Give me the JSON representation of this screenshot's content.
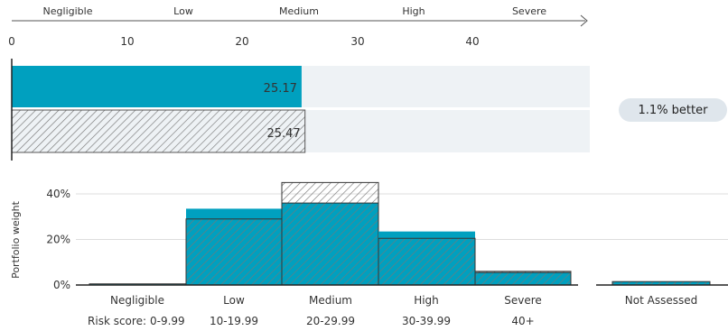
{
  "risk_categories": [
    "Negligible",
    "Low",
    "Medium",
    "High",
    "Severe"
  ],
  "score_axis": {
    "ticks": [
      "0",
      "10",
      "20",
      "30",
      "40"
    ],
    "range": [
      0,
      50
    ]
  },
  "comparison_badge": "1.1% better",
  "bottom_labels": {
    "category_names": [
      "Negligible",
      "Low",
      "Medium",
      "High",
      "Severe",
      "Not Assessed"
    ],
    "score_prefix": "Risk score:",
    "score_ranges": [
      "0-9.99",
      "10-19.99",
      "20-29.99",
      "30-39.99",
      "40+"
    ]
  },
  "colors": {
    "portfolio": "#00a0bf",
    "benchmark_hatch": "#777777",
    "track": "#eef2f5"
  },
  "chart_data": [
    {
      "type": "bar",
      "orientation": "horizontal",
      "series": [
        {
          "style": "solid",
          "value": 25.17,
          "label": "25.17"
        },
        {
          "style": "hatched",
          "value": 25.47,
          "label": "25.47"
        }
      ],
      "xlim": [
        0,
        50
      ]
    },
    {
      "type": "bar",
      "categories": [
        "Negligible",
        "Low",
        "Medium",
        "High",
        "Severe",
        "Not Assessed"
      ],
      "ylabel": "Portfolio weight",
      "yticks": [
        "0%",
        "20%",
        "40%"
      ],
      "ylim": [
        0,
        48
      ],
      "series": [
        {
          "style": "solid",
          "values": [
            0.5,
            33.5,
            36,
            23.5,
            5.5,
            1.5
          ]
        },
        {
          "style": "hatched",
          "values": [
            0.5,
            29,
            45,
            20.5,
            6,
            1.5
          ]
        }
      ],
      "grid": true
    }
  ]
}
